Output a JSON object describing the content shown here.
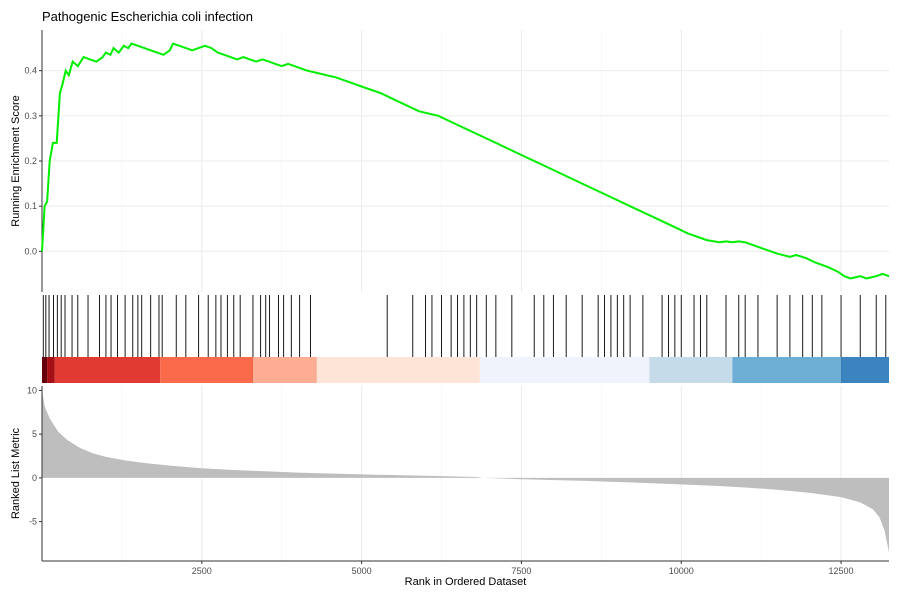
{
  "chart_data": {
    "type": "line",
    "title": "Pathogenic Escherichia coli infection",
    "xlabel": "Rank in Ordered Dataset",
    "xlim": [
      0,
      13250
    ],
    "x_ticks": [
      2500,
      5000,
      7500,
      10000,
      12500
    ],
    "x_tick_labels": [
      "2500",
      "5000",
      "7500",
      "10000",
      "12500"
    ],
    "panels": [
      {
        "name": "running-score",
        "ylabel": "Running Enrichment Score",
        "ylim": [
          -0.09,
          0.49
        ],
        "y_ticks": [
          0.0,
          0.1,
          0.2,
          0.3,
          0.4
        ],
        "y_tick_labels": [
          "0.0",
          "0.1",
          "0.2",
          "0.3",
          "0.4"
        ],
        "grid": true,
        "line_color": "#00ee00",
        "points": [
          [
            0,
            0.0
          ],
          [
            40,
            0.1
          ],
          [
            80,
            0.11
          ],
          [
            120,
            0.2
          ],
          [
            170,
            0.24
          ],
          [
            230,
            0.24
          ],
          [
            280,
            0.35
          ],
          [
            320,
            0.37
          ],
          [
            370,
            0.4
          ],
          [
            420,
            0.39
          ],
          [
            480,
            0.42
          ],
          [
            560,
            0.41
          ],
          [
            650,
            0.43
          ],
          [
            750,
            0.425
          ],
          [
            850,
            0.42
          ],
          [
            950,
            0.43
          ],
          [
            1000,
            0.44
          ],
          [
            1070,
            0.435
          ],
          [
            1120,
            0.45
          ],
          [
            1200,
            0.44
          ],
          [
            1280,
            0.455
          ],
          [
            1350,
            0.45
          ],
          [
            1400,
            0.46
          ],
          [
            1500,
            0.455
          ],
          [
            1600,
            0.45
          ],
          [
            1700,
            0.445
          ],
          [
            1800,
            0.44
          ],
          [
            1900,
            0.435
          ],
          [
            2000,
            0.445
          ],
          [
            2050,
            0.46
          ],
          [
            2150,
            0.455
          ],
          [
            2250,
            0.45
          ],
          [
            2350,
            0.445
          ],
          [
            2450,
            0.45
          ],
          [
            2550,
            0.455
          ],
          [
            2650,
            0.45
          ],
          [
            2750,
            0.44
          ],
          [
            2850,
            0.435
          ],
          [
            2950,
            0.43
          ],
          [
            3050,
            0.425
          ],
          [
            3150,
            0.43
          ],
          [
            3250,
            0.425
          ],
          [
            3350,
            0.42
          ],
          [
            3450,
            0.425
          ],
          [
            3550,
            0.42
          ],
          [
            3650,
            0.415
          ],
          [
            3750,
            0.41
          ],
          [
            3850,
            0.415
          ],
          [
            3950,
            0.41
          ],
          [
            4050,
            0.405
          ],
          [
            4150,
            0.4
          ],
          [
            4300,
            0.395
          ],
          [
            4450,
            0.39
          ],
          [
            4600,
            0.385
          ],
          [
            4800,
            0.375
          ],
          [
            5000,
            0.365
          ],
          [
            5300,
            0.35
          ],
          [
            5600,
            0.33
          ],
          [
            5900,
            0.31
          ],
          [
            6200,
            0.3
          ],
          [
            6500,
            0.28
          ],
          [
            6800,
            0.26
          ],
          [
            7100,
            0.24
          ],
          [
            7400,
            0.22
          ],
          [
            7700,
            0.2
          ],
          [
            8000,
            0.18
          ],
          [
            8300,
            0.16
          ],
          [
            8600,
            0.14
          ],
          [
            8900,
            0.12
          ],
          [
            9200,
            0.1
          ],
          [
            9500,
            0.08
          ],
          [
            9800,
            0.06
          ],
          [
            10100,
            0.04
          ],
          [
            10400,
            0.025
          ],
          [
            10600,
            0.02
          ],
          [
            10700,
            0.022
          ],
          [
            10800,
            0.02
          ],
          [
            10900,
            0.022
          ],
          [
            11000,
            0.02
          ],
          [
            11100,
            0.015
          ],
          [
            11300,
            0.005
          ],
          [
            11500,
            -0.005
          ],
          [
            11700,
            -0.012
          ],
          [
            11800,
            -0.008
          ],
          [
            11950,
            -0.015
          ],
          [
            12100,
            -0.025
          ],
          [
            12300,
            -0.035
          ],
          [
            12450,
            -0.045
          ],
          [
            12550,
            -0.055
          ],
          [
            12650,
            -0.06
          ],
          [
            12800,
            -0.055
          ],
          [
            12900,
            -0.06
          ],
          [
            13050,
            -0.055
          ],
          [
            13150,
            -0.05
          ],
          [
            13250,
            -0.055
          ]
        ]
      },
      {
        "name": "gene-hits",
        "description_marks": "vertical ticks at ranks of gene set members",
        "hit_ranks": [
          20,
          60,
          110,
          180,
          240,
          300,
          360,
          470,
          560,
          720,
          900,
          1000,
          1080,
          1180,
          1300,
          1420,
          1500,
          1560,
          1700,
          1830,
          1880,
          2100,
          2250,
          2450,
          2600,
          2720,
          2800,
          2900,
          3000,
          3100,
          3300,
          3420,
          3500,
          3560,
          3700,
          3780,
          3900,
          4030,
          4200,
          5400,
          5800,
          6000,
          6100,
          6250,
          6400,
          6500,
          6600,
          6700,
          6800,
          6950,
          7100,
          7350,
          7700,
          7850,
          8000,
          8200,
          8450,
          8700,
          8800,
          8900,
          9000,
          9100,
          9200,
          9400,
          9700,
          9800,
          9900,
          10000,
          10200,
          10300,
          10400,
          10700,
          10900,
          11000,
          11200,
          11500,
          11700,
          11900,
          12050,
          12200,
          12500,
          12800,
          13050,
          13200
        ],
        "color_band": [
          {
            "from": 0,
            "to": 80,
            "color": "#67000d"
          },
          {
            "from": 80,
            "to": 200,
            "color": "#a50f15"
          },
          {
            "from": 200,
            "to": 1850,
            "color": "#e03a33"
          },
          {
            "from": 1850,
            "to": 3300,
            "color": "#fb6a4a"
          },
          {
            "from": 3300,
            "to": 4300,
            "color": "#fcad94"
          },
          {
            "from": 4300,
            "to": 6850,
            "color": "#fde4d7"
          },
          {
            "from": 6850,
            "to": 9500,
            "color": "#eff3fb"
          },
          {
            "from": 9500,
            "to": 10800,
            "color": "#c5dbea"
          },
          {
            "from": 10800,
            "to": 12500,
            "color": "#6daed5"
          },
          {
            "from": 12500,
            "to": 13250,
            "color": "#3c84bf"
          }
        ]
      },
      {
        "name": "ranked-metric",
        "ylabel": "Ranked List Metric",
        "ylim": [
          -9.5,
          10.5
        ],
        "y_ticks": [
          -5,
          0,
          5,
          10
        ],
        "y_tick_labels": [
          "-5",
          "0",
          "5",
          "10"
        ],
        "fill_color": "#bebebe",
        "points": [
          [
            0,
            10
          ],
          [
            40,
            8.2
          ],
          [
            120,
            6.8
          ],
          [
            250,
            5.3
          ],
          [
            400,
            4.3
          ],
          [
            600,
            3.4
          ],
          [
            800,
            2.8
          ],
          [
            1000,
            2.4
          ],
          [
            1300,
            2.0
          ],
          [
            1600,
            1.7
          ],
          [
            2000,
            1.4
          ],
          [
            2500,
            1.1
          ],
          [
            3000,
            0.9
          ],
          [
            3500,
            0.75
          ],
          [
            4000,
            0.6
          ],
          [
            5000,
            0.4
          ],
          [
            6000,
            0.25
          ],
          [
            6800,
            0.1
          ],
          [
            6900,
            0.0
          ],
          [
            7500,
            -0.15
          ],
          [
            8500,
            -0.35
          ],
          [
            9500,
            -0.6
          ],
          [
            10500,
            -0.9
          ],
          [
            11000,
            -1.1
          ],
          [
            11500,
            -1.35
          ],
          [
            12000,
            -1.7
          ],
          [
            12500,
            -2.2
          ],
          [
            12800,
            -2.8
          ],
          [
            13000,
            -3.6
          ],
          [
            13100,
            -4.5
          ],
          [
            13180,
            -6.0
          ],
          [
            13250,
            -8.5
          ]
        ]
      }
    ]
  }
}
